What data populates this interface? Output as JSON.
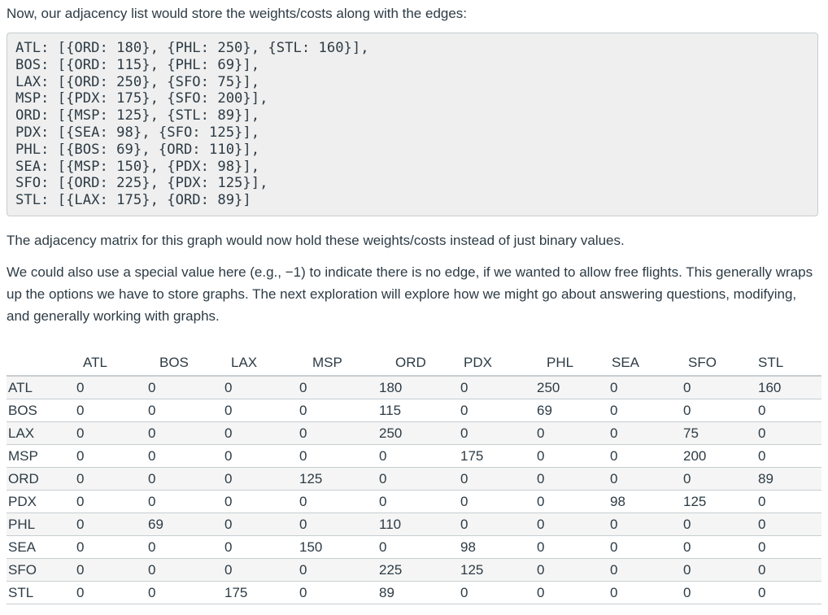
{
  "intro": "Now, our adjacency list would store the weights/costs along with the edges:",
  "code_lines": [
    "ATL: [{ORD: 180}, {PHL: 250}, {STL: 160}],",
    "BOS: [{ORD: 115}, {PHL: 69}],",
    "LAX: [{ORD: 250}, {SFO: 75}],",
    "MSP: [{PDX: 175}, {SFO: 200}],",
    "ORD: [{MSP: 125}, {STL: 89}],",
    "PDX: [{SEA: 98}, {SFO: 125}],",
    "PHL: [{BOS: 69}, {ORD: 110}],",
    "SEA: [{MSP: 150}, {PDX: 98}],",
    "SFO: [{ORD: 225}, {PDX: 125}],",
    "STL: [{LAX: 175}, {ORD: 89}]"
  ],
  "para1": "The adjacency matrix for this graph would now hold these weights/costs instead of just binary values.",
  "para2": "We could also use a special value here (e.g., −1) to indicate there is no edge, if we wanted to allow free flights. This generally wraps up the options we have to store graphs. The next exploration will explore how we might go about answering questions, modifying, and generally working with graphs.",
  "matrix": {
    "columns": [
      "ATL",
      "BOS",
      "LAX",
      "MSP",
      "ORD",
      "PDX",
      "PHL",
      "SEA",
      "SFO",
      "STL"
    ],
    "rows": [
      {
        "label": "ATL",
        "values": [
          "0",
          "0",
          "0",
          "0",
          "180",
          "0",
          "250",
          "0",
          "0",
          "160"
        ]
      },
      {
        "label": "BOS",
        "values": [
          "0",
          "0",
          "0",
          "0",
          "115",
          "0",
          "69",
          "0",
          "0",
          "0"
        ]
      },
      {
        "label": "LAX",
        "values": [
          "0",
          "0",
          "0",
          "0",
          "250",
          "0",
          "0",
          "0",
          "75",
          "0"
        ]
      },
      {
        "label": "MSP",
        "values": [
          "0",
          "0",
          "0",
          "0",
          "0",
          "175",
          "0",
          "0",
          "200",
          "0"
        ]
      },
      {
        "label": "ORD",
        "values": [
          "0",
          "0",
          "0",
          "125",
          "0",
          "0",
          "0",
          "0",
          "0",
          "89"
        ]
      },
      {
        "label": "PDX",
        "values": [
          "0",
          "0",
          "0",
          "0",
          "0",
          "0",
          "0",
          "98",
          "125",
          "0"
        ]
      },
      {
        "label": "PHL",
        "values": [
          "0",
          "69",
          "0",
          "0",
          "110",
          "0",
          "0",
          "0",
          "0",
          "0"
        ]
      },
      {
        "label": "SEA",
        "values": [
          "0",
          "0",
          "0",
          "150",
          "0",
          "98",
          "0",
          "0",
          "0",
          "0"
        ]
      },
      {
        "label": "SFO",
        "values": [
          "0",
          "0",
          "0",
          "0",
          "225",
          "125",
          "0",
          "0",
          "0",
          "0"
        ]
      },
      {
        "label": "STL",
        "values": [
          "0",
          "0",
          "175",
          "0",
          "89",
          "0",
          "0",
          "0",
          "0",
          "0"
        ]
      }
    ]
  }
}
